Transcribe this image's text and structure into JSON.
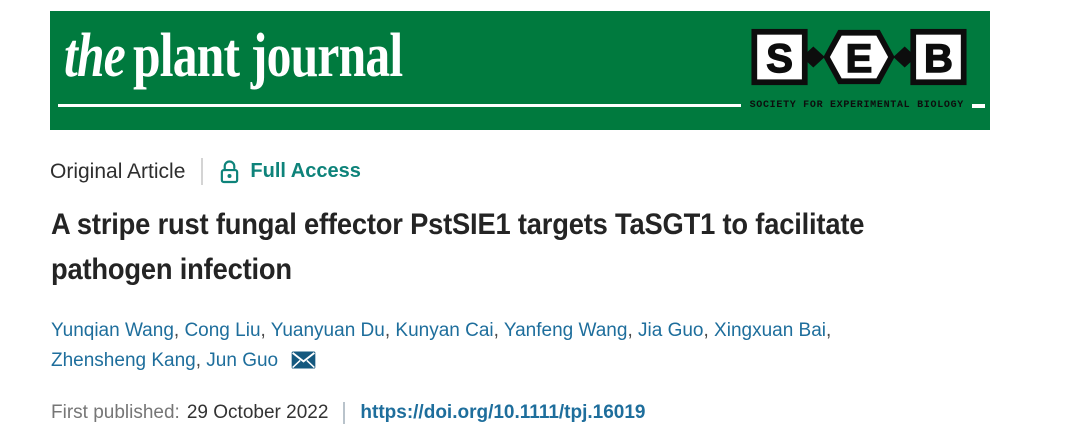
{
  "banner": {
    "journal": {
      "the": "the",
      "rest": "plant journal"
    },
    "seb": {
      "letters": [
        "S",
        "E",
        "B"
      ],
      "caption": "SOCIETY FOR EXPERIMENTAL BIOLOGY"
    }
  },
  "meta": {
    "article_type": "Original Article",
    "access": "Full Access"
  },
  "title_lines": [
    "A stripe rust fungal effector PstSIE1 targets TaSGT1 to facilitate",
    "pathogen infection"
  ],
  "authors": {
    "lines": [
      [
        "Yunqian Wang",
        "Cong Liu",
        "Yuanyuan Du",
        "Kunyan Cai",
        "Yanfeng Wang",
        "Jia Guo",
        "Xingxuan Bai"
      ],
      [
        "Zhensheng Kang",
        "Jun Guo"
      ]
    ],
    "separator": ", "
  },
  "published": {
    "label": "First published:",
    "date": "29 October 2022",
    "doi": "https://doi.org/10.1111/tpj.16019"
  },
  "colors": {
    "banner_green": "#007A3E",
    "access_teal": "#0E837A",
    "link_blue": "#1E6E9C",
    "title_dark": "#242424",
    "muted_gray": "#767676",
    "envelope_blue": "#15597F"
  }
}
